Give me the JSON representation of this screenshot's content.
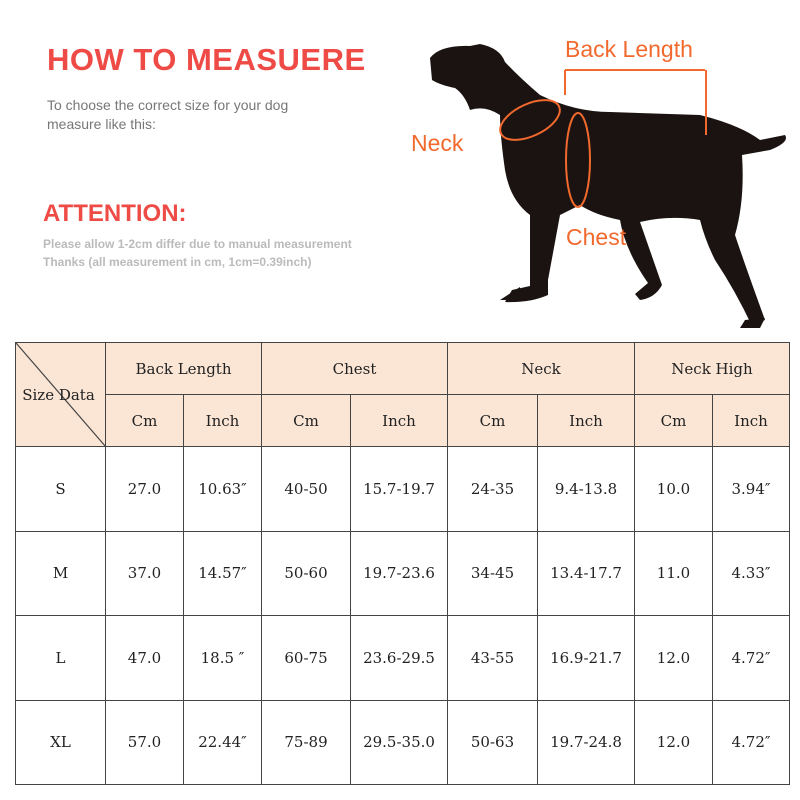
{
  "header": {
    "title": "HOW TO MEASUERE",
    "subtitle_lines": [
      "To choose the correct size for your dog",
      "measure like this:"
    ]
  },
  "attention": {
    "title": "ATTENTION:",
    "lines": [
      "Please allow 1-2cm differ due to manual measurement",
      "Thanks (all measurement in cm, 1cm=0.39inch)"
    ]
  },
  "diagram": {
    "labels": {
      "back_length": "Back Length",
      "neck": "Neck",
      "chest": "Chest"
    },
    "accent": "#f2692e",
    "silhouette": "#1a1311"
  },
  "table": {
    "corner": "Size Data",
    "groups": [
      "Back Length",
      "Chest",
      "Neck",
      "Neck High"
    ],
    "units": [
      "Cm",
      "Inch"
    ],
    "rows": [
      {
        "size": "S",
        "values": [
          "27.0",
          "10.63″",
          "40-50",
          "15.7-19.7",
          "24-35",
          "9.4-13.8",
          "10.0",
          "3.94″"
        ]
      },
      {
        "size": "M",
        "values": [
          "37.0",
          "14.57″",
          "50-60",
          "19.7-23.6",
          "34-45",
          "13.4-17.7",
          "11.0",
          "4.33″"
        ]
      },
      {
        "size": "L",
        "values": [
          "47.0",
          "18.5 ″",
          "60-75",
          "23.6-29.5",
          "43-55",
          "16.9-21.7",
          "12.0",
          "4.72″"
        ]
      },
      {
        "size": "XL",
        "values": [
          "57.0",
          "22.44″",
          "75-89",
          "29.5-35.0",
          "50-63",
          "19.7-24.8",
          "12.0",
          "4.72″"
        ]
      }
    ]
  }
}
